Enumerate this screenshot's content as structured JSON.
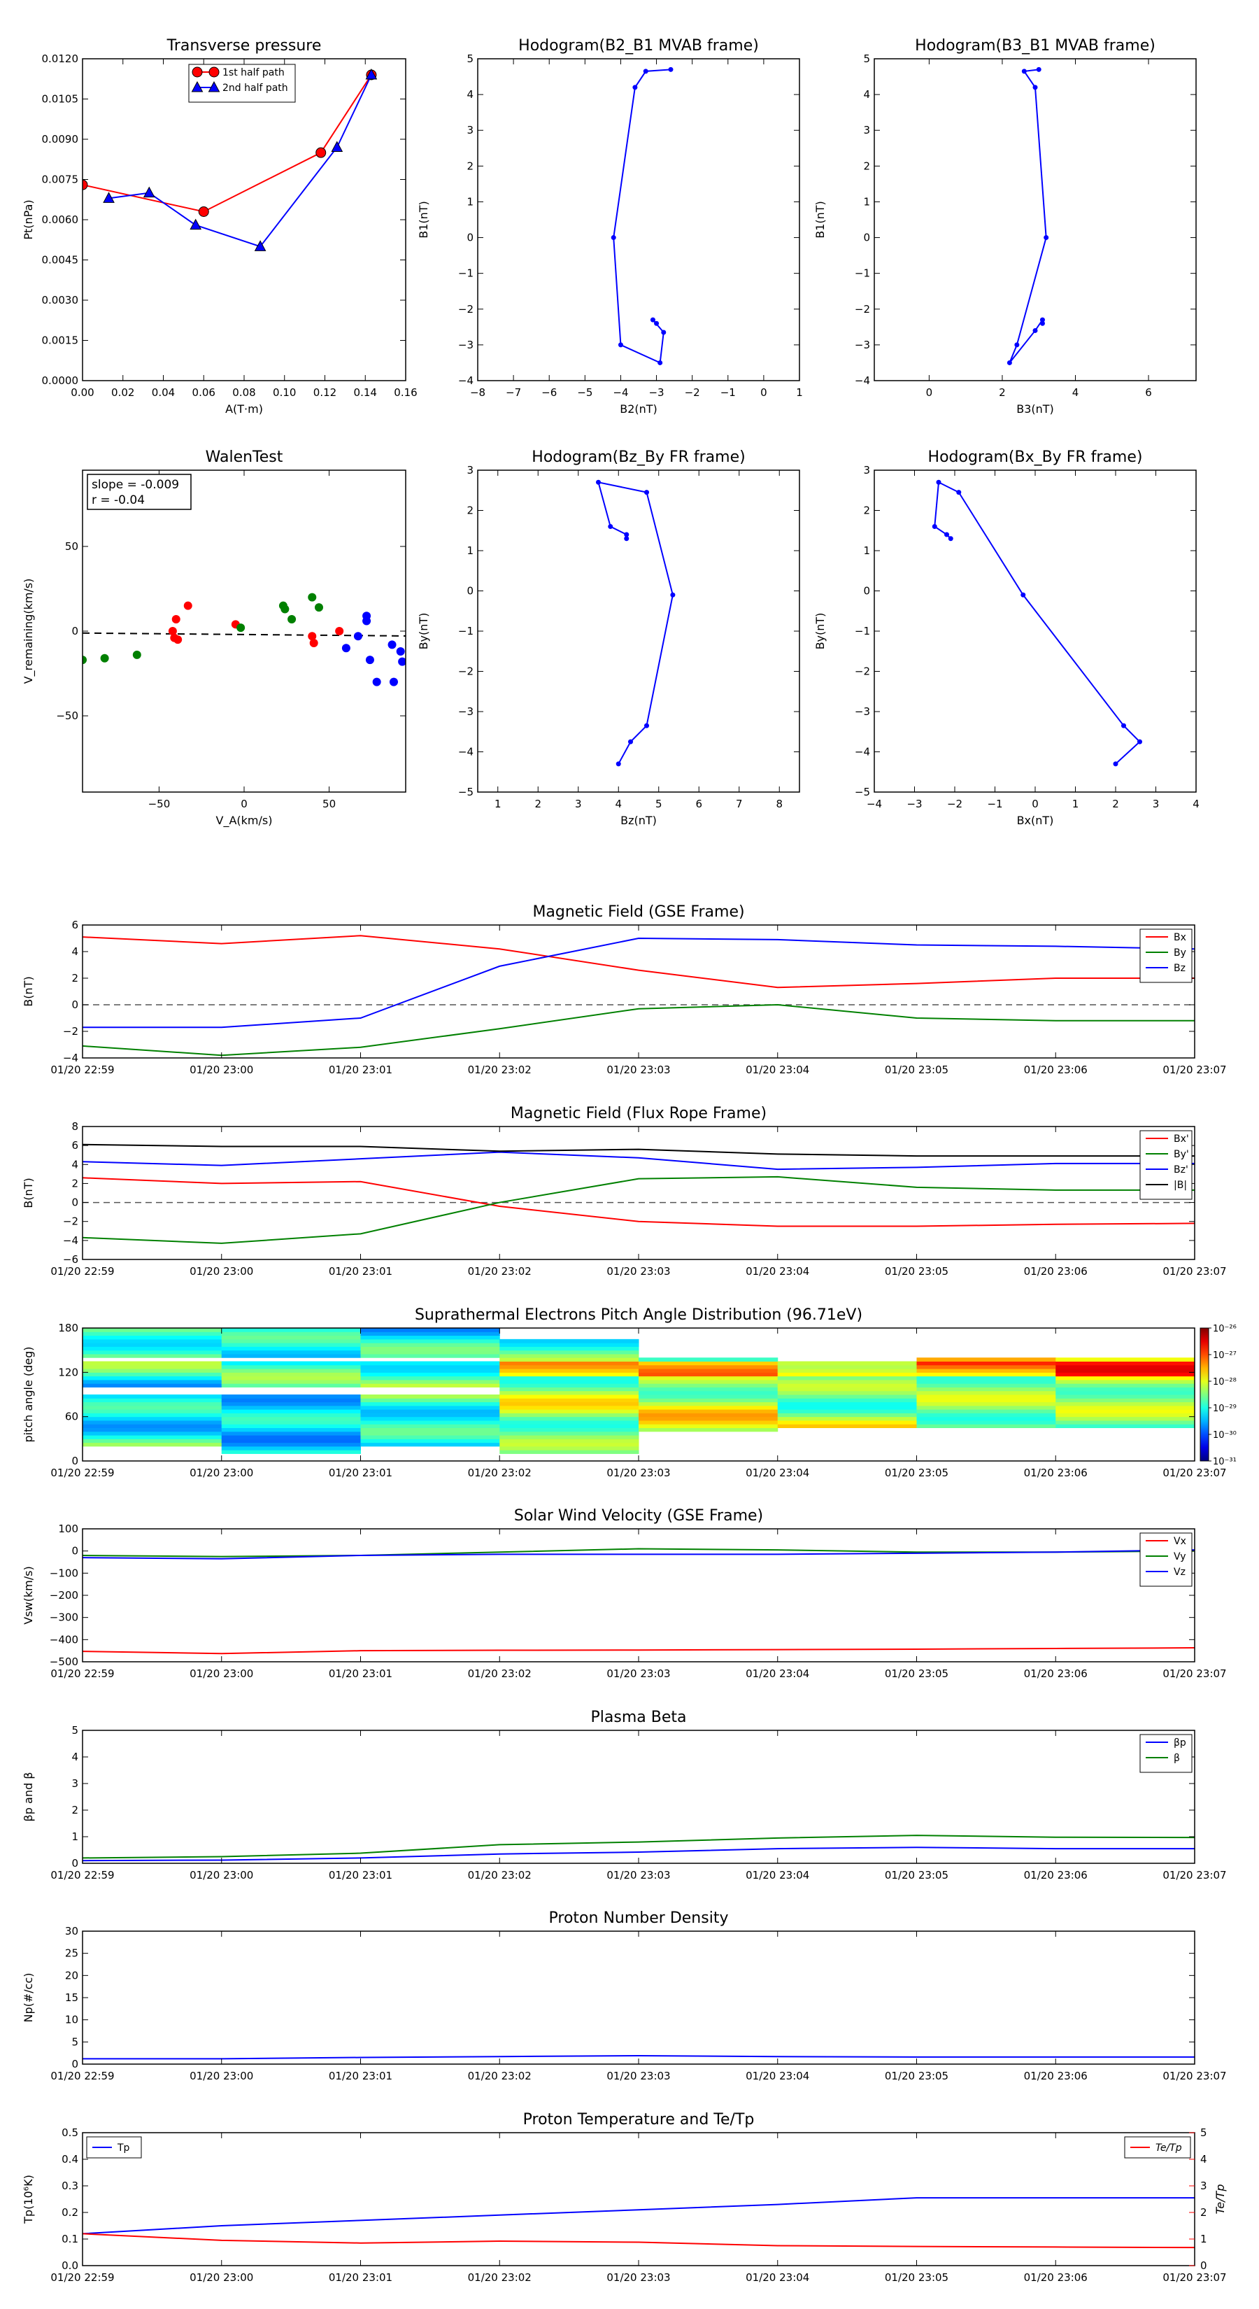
{
  "chart_data": [
    {
      "id": "pt",
      "type": "line",
      "title": "Transverse pressure",
      "xlabel": "A(T·m)",
      "ylabel": "Pt(nPa)",
      "xlim": [
        0,
        0.16
      ],
      "ylim": [
        0,
        0.012
      ],
      "xticks": [
        0,
        0.02,
        0.04,
        0.06,
        0.08,
        0.1,
        0.12,
        0.14,
        0.16
      ],
      "xtick_labels": [
        "0.00",
        "0.02",
        "0.04",
        "0.06",
        "0.08",
        "0.10",
        "0.12",
        "0.14",
        "0.16"
      ],
      "yticks": [
        0,
        0.0015,
        0.003,
        0.0045,
        0.006,
        0.0075,
        0.009,
        0.0105,
        0.012
      ],
      "ytick_labels": [
        "0.0000",
        "0.0015",
        "0.0030",
        "0.0045",
        "0.0060",
        "0.0075",
        "0.0090",
        "0.0105",
        "0.0120"
      ],
      "legend_position": "top-center",
      "series": [
        {
          "name": "1st half path",
          "color": "#ff0000",
          "marker": "circle",
          "x": [
            0.0,
            0.06,
            0.118,
            0.143
          ],
          "y": [
            0.0073,
            0.0063,
            0.0085,
            0.0114
          ]
        },
        {
          "name": "2nd half path",
          "color": "#0000ff",
          "marker": "triangle",
          "x": [
            0.013,
            0.033,
            0.056,
            0.088,
            0.126,
            0.143
          ],
          "y": [
            0.0068,
            0.007,
            0.0058,
            0.005,
            0.0087,
            0.0114
          ]
        }
      ]
    },
    {
      "id": "h1",
      "type": "line",
      "title": "Hodogram(B2_B1 MVAB frame)",
      "xlabel": "B2(nT)",
      "ylabel": "B1(nT)",
      "xlim": [
        -8,
        1
      ],
      "ylim": [
        -4,
        5
      ],
      "xticks": [
        -8,
        -7,
        -6,
        -5,
        -4,
        -3,
        -2,
        -1,
        0,
        1
      ],
      "xtick_labels": [
        "−8",
        "−7",
        "−6",
        "−5",
        "−4",
        "−3",
        "−2",
        "−1",
        "0",
        "1"
      ],
      "yticks": [
        -4,
        -3,
        -2,
        -1,
        0,
        1,
        2,
        3,
        4,
        5
      ],
      "ytick_labels": [
        "−4",
        "−3",
        "−2",
        "−1",
        "0",
        "1",
        "2",
        "3",
        "4",
        "5"
      ],
      "series": [
        {
          "color": "#0000ff",
          "marker": "dot",
          "x": [
            -2.6,
            -3.3,
            -3.6,
            -4.2,
            -4.0,
            -2.9,
            -2.8,
            -3.1,
            -3.0
          ],
          "y": [
            4.7,
            4.65,
            4.2,
            0.0,
            -3.0,
            -3.5,
            -2.65,
            -2.3,
            -2.4
          ]
        }
      ]
    },
    {
      "id": "h2",
      "type": "line",
      "title": "Hodogram(B3_B1 MVAB frame)",
      "xlabel": "B3(nT)",
      "ylabel": "B1(nT)",
      "xlim": [
        -1.5,
        7.3
      ],
      "ylim": [
        -4,
        5
      ],
      "xticks": [
        0,
        2,
        4,
        6
      ],
      "xtick_labels": [
        "0",
        "2",
        "4",
        "6"
      ],
      "yticks": [
        -4,
        -3,
        -2,
        -1,
        0,
        1,
        2,
        3,
        4,
        5
      ],
      "ytick_labels": [
        "−4",
        "−3",
        "−2",
        "−1",
        "0",
        "1",
        "2",
        "3",
        "4",
        "5"
      ],
      "series": [
        {
          "color": "#0000ff",
          "marker": "dot",
          "x": [
            3.0,
            2.6,
            2.9,
            3.2,
            2.4,
            2.2,
            2.9,
            3.1,
            3.1
          ],
          "y": [
            4.7,
            4.65,
            4.2,
            0.0,
            -3.0,
            -3.5,
            -2.6,
            -2.3,
            -2.4
          ]
        }
      ]
    },
    {
      "id": "walen",
      "type": "scatter",
      "title": "WalenTest",
      "xlabel": "V_A(km/s)",
      "ylabel": "V_remaining(km/s)",
      "xlim": [
        -95,
        95
      ],
      "ylim": [
        -95,
        95
      ],
      "xticks": [
        -50,
        0,
        50
      ],
      "xtick_labels": [
        "−50",
        "0",
        "50"
      ],
      "yticks": [
        -50,
        0,
        50
      ],
      "ytick_labels": [
        "−50",
        "0",
        "50"
      ],
      "annotation": [
        "slope = -0.009",
        "r = -0.04"
      ],
      "fit": {
        "slope": -0.009,
        "intercept": -2,
        "style": "dashed"
      },
      "series": [
        {
          "color": "#ff0000",
          "x": [
            -42,
            -39,
            -40,
            -33,
            -5,
            40,
            41,
            56,
            -41
          ],
          "y": [
            0,
            -5,
            7,
            15,
            4,
            -3,
            -7,
            0,
            -4
          ]
        },
        {
          "color": "#008000",
          "x": [
            -95,
            -82,
            -63,
            -2,
            23,
            24,
            28,
            40,
            44
          ],
          "y": [
            -17,
            -16,
            -14,
            2,
            15,
            13,
            7,
            20,
            14
          ]
        },
        {
          "color": "#0000ff",
          "x": [
            60,
            67,
            72,
            72,
            74,
            87,
            92,
            93,
            88,
            78
          ],
          "y": [
            -10,
            -3,
            6,
            9,
            -17,
            -8,
            -12,
            -18,
            -30,
            -30
          ]
        }
      ]
    },
    {
      "id": "h3",
      "type": "line",
      "title": "Hodogram(Bz_By FR frame)",
      "xlabel": "Bz(nT)",
      "ylabel": "By(nT)",
      "xlim": [
        0.5,
        8.5
      ],
      "ylim": [
        -5,
        3
      ],
      "xticks": [
        1,
        2,
        3,
        4,
        5,
        6,
        7,
        8
      ],
      "xtick_labels": [
        "1",
        "2",
        "3",
        "4",
        "5",
        "6",
        "7",
        "8"
      ],
      "yticks": [
        -5,
        -4,
        -3,
        -2,
        -1,
        0,
        1,
        2,
        3
      ],
      "ytick_labels": [
        "−5",
        "−4",
        "−3",
        "−2",
        "−1",
        "0",
        "1",
        "2",
        "3"
      ],
      "series": [
        {
          "color": "#0000ff",
          "marker": "dot",
          "x": [
            4.2,
            4.2,
            3.8,
            3.5,
            4.7,
            5.35,
            4.7,
            4.3,
            4.0
          ],
          "y": [
            1.3,
            1.4,
            1.6,
            2.7,
            2.45,
            -0.1,
            -3.35,
            -3.75,
            -4.3
          ]
        }
      ]
    },
    {
      "id": "h4",
      "type": "line",
      "title": "Hodogram(Bx_By FR frame)",
      "xlabel": "Bx(nT)",
      "ylabel": "By(nT)",
      "xlim": [
        -4,
        4
      ],
      "ylim": [
        -5,
        3
      ],
      "xticks": [
        -4,
        -3,
        -2,
        -1,
        0,
        1,
        2,
        3,
        4
      ],
      "xtick_labels": [
        "−4",
        "−3",
        "−2",
        "−1",
        "0",
        "1",
        "2",
        "3",
        "4"
      ],
      "yticks": [
        -5,
        -4,
        -3,
        -2,
        -1,
        0,
        1,
        2,
        3
      ],
      "ytick_labels": [
        "−5",
        "−4",
        "−3",
        "−2",
        "−1",
        "0",
        "1",
        "2",
        "3"
      ],
      "series": [
        {
          "color": "#0000ff",
          "marker": "dot",
          "x": [
            -2.1,
            -2.2,
            -2.5,
            -2.4,
            -1.9,
            -0.3,
            2.2,
            2.6,
            2.0
          ],
          "y": [
            1.3,
            1.4,
            1.6,
            2.7,
            2.45,
            -0.1,
            -3.35,
            -3.75,
            -4.3
          ]
        }
      ]
    },
    {
      "id": "bgse",
      "type": "line",
      "title": "Magnetic Field (GSE Frame)",
      "ylabel": "B(nT)",
      "x": [
        "01/20 22:59",
        "01/20 23:00",
        "01/20 23:01",
        "01/20 23:02",
        "01/20 23:03",
        "01/20 23:04",
        "01/20 23:05",
        "01/20 23:06",
        "01/20 23:07"
      ],
      "ylim": [
        -4,
        6
      ],
      "yticks": [
        -4,
        -2,
        0,
        2,
        4,
        6
      ],
      "ytick_labels": [
        "−4",
        "−2",
        "0",
        "2",
        "4",
        "6"
      ],
      "zero_line": true,
      "legend_position": "top-right",
      "series": [
        {
          "name": "Bx",
          "color": "#ff0000",
          "values": [
            5.1,
            4.6,
            5.2,
            4.2,
            2.6,
            1.3,
            1.6,
            2.0,
            2.0
          ]
        },
        {
          "name": "By",
          "color": "#008000",
          "values": [
            -3.1,
            -3.8,
            -3.2,
            -1.8,
            -0.3,
            0.0,
            -1.0,
            -1.2,
            -1.2
          ]
        },
        {
          "name": "Bz",
          "color": "#0000ff",
          "values": [
            -1.7,
            -1.7,
            -1.0,
            2.9,
            5.0,
            4.9,
            4.5,
            4.4,
            4.2
          ]
        }
      ]
    },
    {
      "id": "bfr",
      "type": "line",
      "title": "Magnetic Field (Flux Rope Frame)",
      "ylabel": "B(nT)",
      "x": [
        "01/20 22:59",
        "01/20 23:00",
        "01/20 23:01",
        "01/20 23:02",
        "01/20 23:03",
        "01/20 23:04",
        "01/20 23:05",
        "01/20 23:06",
        "01/20 23:07"
      ],
      "ylim": [
        -6,
        8
      ],
      "yticks": [
        -6,
        -4,
        -2,
        0,
        2,
        4,
        6,
        8
      ],
      "ytick_labels": [
        "−6",
        "−4",
        "−2",
        "0",
        "2",
        "4",
        "6",
        "8"
      ],
      "zero_line": true,
      "legend_position": "top-right",
      "series": [
        {
          "name": "Bx'",
          "color": "#ff0000",
          "values": [
            2.6,
            2.0,
            2.2,
            -0.4,
            -2.0,
            -2.5,
            -2.5,
            -2.3,
            -2.2
          ]
        },
        {
          "name": "By'",
          "color": "#008000",
          "values": [
            -3.7,
            -4.3,
            -3.3,
            0.0,
            2.5,
            2.7,
            1.6,
            1.3,
            1.3
          ]
        },
        {
          "name": "Bz'",
          "color": "#0000ff",
          "values": [
            4.3,
            3.9,
            4.6,
            5.3,
            4.7,
            3.5,
            3.7,
            4.1,
            4.1
          ]
        },
        {
          "name": "|B|",
          "color": "#000000",
          "values": [
            6.1,
            5.9,
            5.9,
            5.4,
            5.6,
            5.1,
            4.9,
            4.9,
            4.9
          ]
        }
      ]
    },
    {
      "id": "pad",
      "type": "heatmap",
      "title": "Suprathermal Electrons Pitch Angle Distribution (96.71eV)",
      "ylabel": "pitch angle (deg)",
      "x": [
        "01/20 22:59",
        "01/20 23:00",
        "01/20 23:01",
        "01/20 23:02",
        "01/20 23:03",
        "01/20 23:04",
        "01/20 23:05",
        "01/20 23:06",
        "01/20 23:07"
      ],
      "ylim": [
        0,
        180
      ],
      "yticks": [
        0,
        60,
        120,
        180
      ],
      "ytick_labels": [
        "0",
        "60",
        "120",
        "180"
      ],
      "colorbar_ticks": [
        "10⁻²⁶",
        "10⁻²⁷",
        "10⁻²⁸",
        "10⁻²⁹",
        "10⁻³⁰",
        "10⁻³¹"
      ],
      "colorbar_range_log": [
        -31,
        -26
      ]
    },
    {
      "id": "vsw",
      "type": "line",
      "title": "Solar Wind Velocity (GSE Frame)",
      "ylabel": "Vsw(km/s)",
      "x": [
        "01/20 22:59",
        "01/20 23:00",
        "01/20 23:01",
        "01/20 23:02",
        "01/20 23:03",
        "01/20 23:04",
        "01/20 23:05",
        "01/20 23:06",
        "01/20 23:07"
      ],
      "ylim": [
        -500,
        100
      ],
      "yticks": [
        -500,
        -400,
        -300,
        -200,
        -100,
        0,
        100
      ],
      "ytick_labels": [
        "−500",
        "−400",
        "−300",
        "−200",
        "−100",
        "0",
        "100"
      ],
      "legend_position": "top-right",
      "series": [
        {
          "name": "Vx",
          "color": "#ff0000",
          "values": [
            -453,
            -463,
            -450,
            -448,
            -447,
            -445,
            -443,
            -440,
            -437
          ]
        },
        {
          "name": "Vy",
          "color": "#008000",
          "values": [
            -20,
            -25,
            -20,
            -5,
            10,
            5,
            -5,
            -5,
            0
          ]
        },
        {
          "name": "Vz",
          "color": "#0000ff",
          "values": [
            -30,
            -35,
            -20,
            -15,
            -15,
            -15,
            -10,
            -5,
            5
          ]
        }
      ]
    },
    {
      "id": "beta",
      "type": "line",
      "title": "Plasma Beta",
      "ylabel": "βp and β",
      "x": [
        "01/20 22:59",
        "01/20 23:00",
        "01/20 23:01",
        "01/20 23:02",
        "01/20 23:03",
        "01/20 23:04",
        "01/20 23:05",
        "01/20 23:06",
        "01/20 23:07"
      ],
      "ylim": [
        0,
        5
      ],
      "yticks": [
        0,
        1,
        2,
        3,
        4,
        5
      ],
      "ytick_labels": [
        "0",
        "1",
        "2",
        "3",
        "4",
        "5"
      ],
      "legend_position": "top-right",
      "series": [
        {
          "name": "βp",
          "color": "#0000ff",
          "values": [
            0.1,
            0.12,
            0.2,
            0.35,
            0.42,
            0.55,
            0.6,
            0.55,
            0.55
          ]
        },
        {
          "name": "β",
          "color": "#008000",
          "values": [
            0.2,
            0.25,
            0.38,
            0.7,
            0.8,
            0.95,
            1.05,
            0.98,
            0.97
          ]
        }
      ]
    },
    {
      "id": "np",
      "type": "line",
      "title": "Proton Number Density",
      "ylabel": "Np(#/cc)",
      "x": [
        "01/20 22:59",
        "01/20 23:00",
        "01/20 23:01",
        "01/20 23:02",
        "01/20 23:03",
        "01/20 23:04",
        "01/20 23:05",
        "01/20 23:06",
        "01/20 23:07"
      ],
      "ylim": [
        0,
        30
      ],
      "yticks": [
        0,
        5,
        10,
        15,
        20,
        25,
        30
      ],
      "ytick_labels": [
        "0",
        "5",
        "10",
        "15",
        "20",
        "25",
        "30"
      ],
      "series": [
        {
          "color": "#0000ff",
          "values": [
            1.2,
            1.2,
            1.5,
            1.7,
            1.9,
            1.7,
            1.6,
            1.6,
            1.6
          ]
        }
      ]
    },
    {
      "id": "tp",
      "type": "line",
      "title": "Proton Temperature and Te/Tp",
      "ylabel": "Tp(10⁶K)",
      "ylabel_right": "Te/Tp",
      "x": [
        "01/20 22:59",
        "01/20 23:00",
        "01/20 23:01",
        "01/20 23:02",
        "01/20 23:03",
        "01/20 23:04",
        "01/20 23:05",
        "01/20 23:06",
        "01/20 23:07"
      ],
      "ylim": [
        0,
        0.5
      ],
      "yticks": [
        0,
        0.1,
        0.2,
        0.3,
        0.4,
        0.5
      ],
      "ytick_labels": [
        "0.0",
        "0.1",
        "0.2",
        "0.3",
        "0.4",
        "0.5"
      ],
      "ylim_right": [
        0,
        5
      ],
      "yticks_right": [
        0,
        1,
        2,
        3,
        4,
        5
      ],
      "ytick_labels_right": [
        "0",
        "1",
        "2",
        "3",
        "4",
        "5"
      ],
      "right_axis_color": "#ff0000",
      "series": [
        {
          "name": "Tp",
          "color": "#0000ff",
          "axis": "left",
          "values": [
            0.12,
            0.15,
            0.17,
            0.19,
            0.21,
            0.23,
            0.255,
            0.255,
            0.255
          ]
        },
        {
          "name": "Te/Tp",
          "color": "#ff0000",
          "axis": "right",
          "values": [
            1.2,
            0.95,
            0.85,
            0.92,
            0.88,
            0.75,
            0.72,
            0.7,
            0.68
          ]
        }
      ]
    }
  ]
}
